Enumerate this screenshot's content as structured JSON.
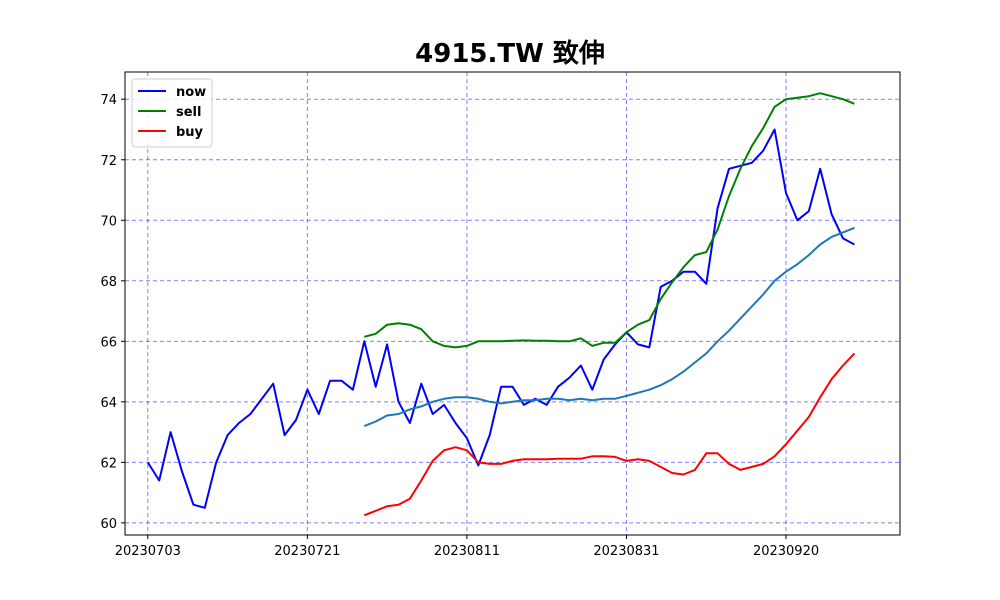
{
  "chart_data": {
    "type": "line",
    "title": "4915.TW 致伸",
    "xlabel": "",
    "ylabel": "",
    "xlim": [
      -2,
      66
    ],
    "ylim": [
      59.6,
      74.9
    ],
    "grid": true,
    "legend_placement": "top-left",
    "x_ticks": [
      {
        "pos": 0,
        "label": "20230703"
      },
      {
        "pos": 14,
        "label": "20230721"
      },
      {
        "pos": 28,
        "label": "20230811"
      },
      {
        "pos": 42,
        "label": "20230831"
      },
      {
        "pos": 56,
        "label": "20230920"
      }
    ],
    "y_ticks": [
      60,
      62,
      64,
      66,
      68,
      70,
      72,
      74
    ],
    "series": [
      {
        "name": "now",
        "color": "#0000ff",
        "start": 0,
        "values": [
          62.0,
          61.4,
          63.0,
          61.7,
          60.6,
          60.5,
          62.0,
          62.9,
          63.3,
          63.6,
          64.1,
          64.6,
          62.9,
          63.4,
          64.4,
          63.6,
          64.7,
          64.7,
          64.4,
          66.0,
          64.5,
          65.9,
          64.0,
          63.3,
          64.6,
          63.6,
          63.9,
          63.3,
          62.8,
          61.9,
          62.9,
          64.5,
          64.5,
          63.9,
          64.1,
          63.9,
          64.5,
          64.8,
          65.2,
          64.4,
          65.4,
          65.9,
          66.3,
          65.9,
          65.8,
          67.8,
          68.0,
          68.3,
          68.3,
          67.9,
          70.4,
          71.7,
          71.8,
          71.9,
          72.3,
          73.0,
          70.9,
          70.0,
          70.3,
          71.7,
          70.2,
          69.4,
          69.2
        ]
      },
      {
        "name": "sell",
        "color": "#008000",
        "start": 19,
        "values": [
          66.15,
          66.25,
          66.55,
          66.6,
          66.55,
          66.4,
          66.0,
          65.85,
          65.8,
          65.85,
          66.0,
          66.0,
          66.0,
          66.02,
          66.03,
          66.02,
          66.02,
          66.0,
          66.0,
          66.1,
          65.85,
          65.95,
          65.95,
          66.3,
          66.55,
          66.7,
          67.4,
          67.95,
          68.45,
          68.85,
          68.95,
          69.7,
          70.8,
          71.7,
          72.45,
          73.05,
          73.75,
          74.0,
          74.05,
          74.1,
          74.2,
          74.1,
          74.0,
          73.85
        ]
      },
      {
        "name": "buy",
        "color": "#ff0000",
        "start": 19,
        "values": [
          60.25,
          60.4,
          60.55,
          60.6,
          60.8,
          61.4,
          62.05,
          62.4,
          62.5,
          62.4,
          62.0,
          61.95,
          61.95,
          62.05,
          62.1,
          62.1,
          62.1,
          62.12,
          62.12,
          62.12,
          62.2,
          62.2,
          62.18,
          62.05,
          62.1,
          62.05,
          61.85,
          61.65,
          61.6,
          61.75,
          62.3,
          62.3,
          61.95,
          61.75,
          61.85,
          61.95,
          62.2,
          62.6,
          63.05,
          63.5,
          64.15,
          64.75,
          65.2,
          65.6
        ]
      },
      {
        "color": "#1f77b4",
        "start": 19,
        "values": [
          63.2,
          63.35,
          63.55,
          63.6,
          63.75,
          63.85,
          64.0,
          64.1,
          64.15,
          64.15,
          64.1,
          64.0,
          63.95,
          64.0,
          64.05,
          64.05,
          64.1,
          64.1,
          64.05,
          64.1,
          64.05,
          64.1,
          64.1,
          64.2,
          64.3,
          64.4,
          64.55,
          64.75,
          65.0,
          65.3,
          65.6,
          66.0,
          66.35,
          66.75,
          67.15,
          67.55,
          68.0,
          68.3,
          68.55,
          68.85,
          69.2,
          69.45,
          69.6,
          69.75
        ]
      }
    ]
  }
}
